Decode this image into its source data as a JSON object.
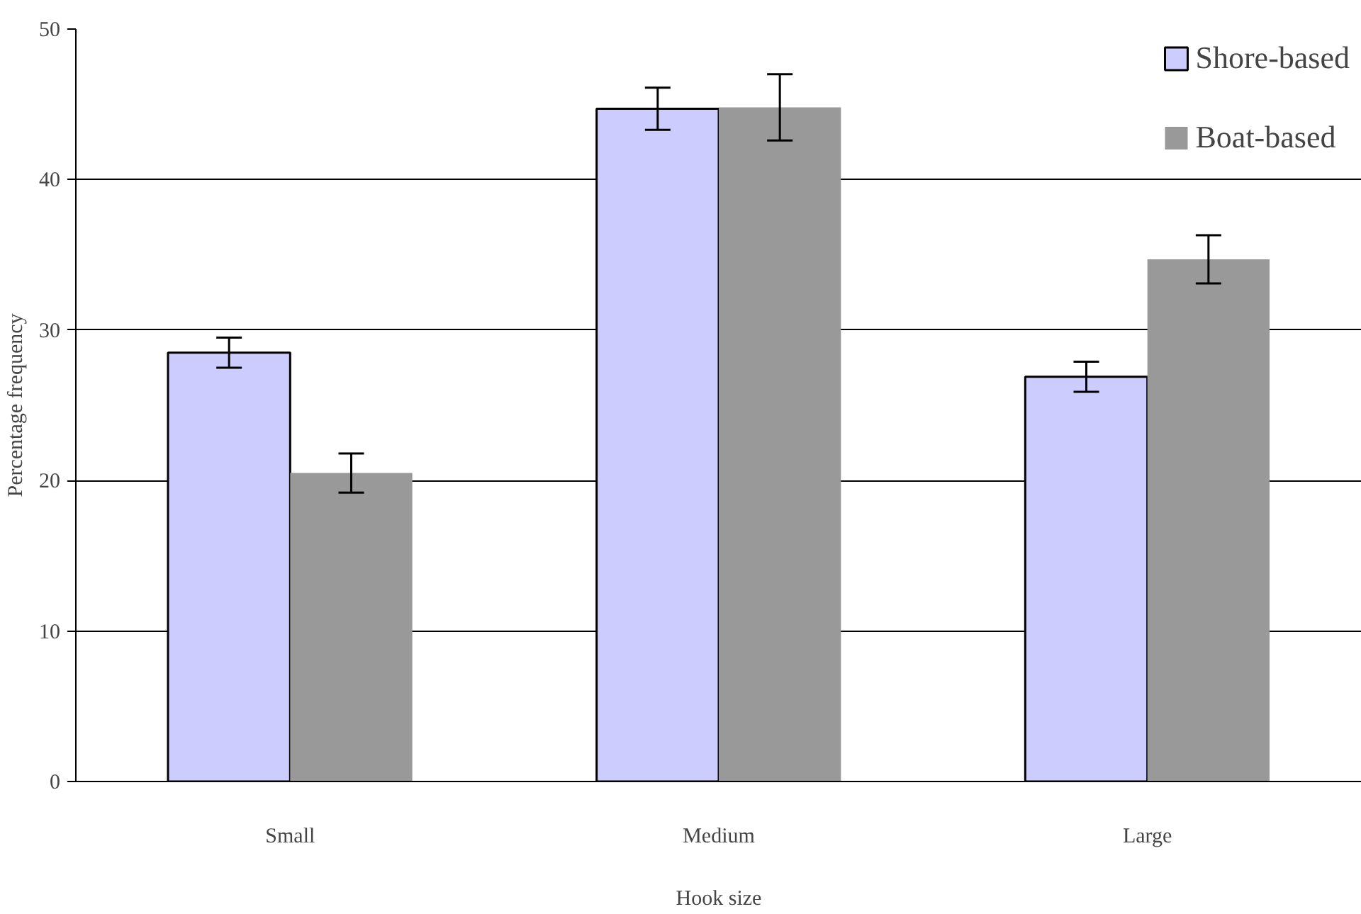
{
  "chart_data": {
    "type": "bar",
    "xlabel": "Hook size",
    "ylabel": "Percentage frequency",
    "categories": [
      "Small",
      "Medium",
      "Large"
    ],
    "series": [
      {
        "name": "Shore-based",
        "color": "#ccccff",
        "values": [
          28.5,
          44.7,
          26.9
        ],
        "errors": [
          1.0,
          1.4,
          1.0
        ]
      },
      {
        "name": "Boat-based",
        "color": "#999999",
        "values": [
          20.5,
          44.8,
          34.7
        ],
        "errors": [
          1.3,
          2.2,
          1.6
        ]
      }
    ],
    "ylim": [
      0,
      50
    ],
    "yticks": [
      0,
      10,
      20,
      30,
      40,
      50
    ],
    "grid": "y",
    "legend": "top right"
  }
}
